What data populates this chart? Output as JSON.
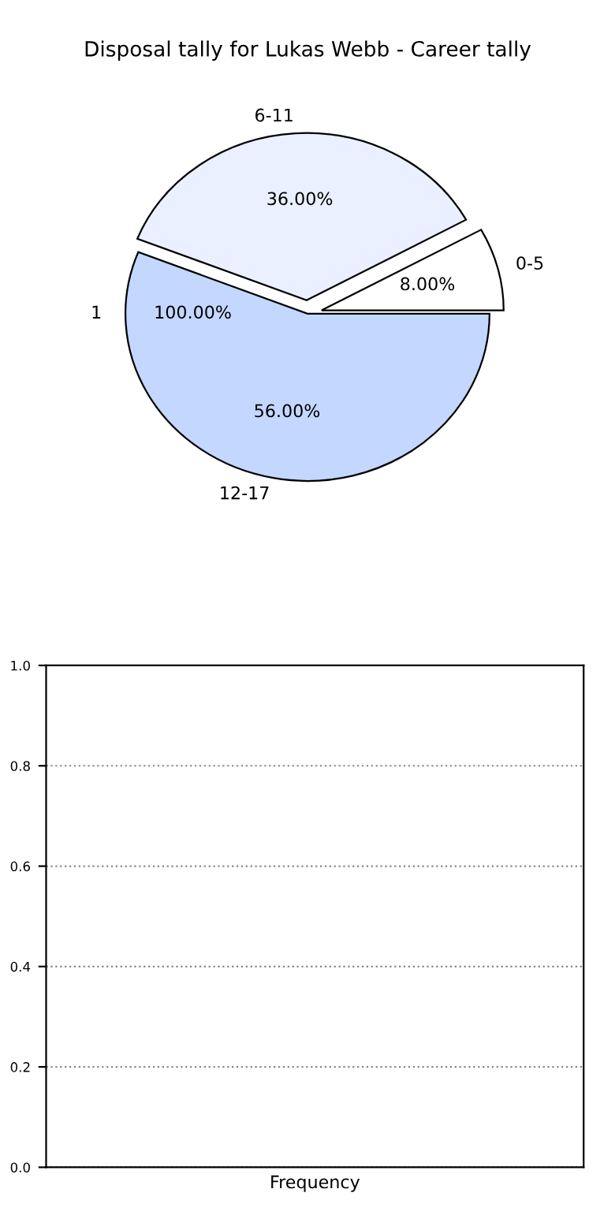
{
  "chart_data": [
    {
      "type": "pie",
      "title": "Disposal tally for Lukas Webb - Career tally",
      "categories": [
        "0-5",
        "6-11",
        "12-17"
      ],
      "values": [
        8,
        36,
        56
      ],
      "colors": [
        "#ffffff",
        "#eaf0ff",
        "#c4d7ff"
      ],
      "value_labels": [
        "8.00%",
        "36.00%",
        "56.00%"
      ],
      "annotations": [
        "1",
        "100.00%"
      ]
    },
    {
      "type": "bar",
      "categories": [
        "Frequency"
      ],
      "values": [
        null
      ],
      "ylim": [
        0,
        1
      ],
      "yticks": [
        {
          "value": 0,
          "label": "0.0"
        },
        {
          "value": 0.2,
          "label": "0.2"
        },
        {
          "value": 0.4,
          "label": "0.4"
        },
        {
          "value": 0.6,
          "label": "0.6"
        },
        {
          "value": 0.8,
          "label": "0.8"
        },
        {
          "value": 1,
          "label": "1.0"
        }
      ],
      "grid": "y"
    }
  ]
}
